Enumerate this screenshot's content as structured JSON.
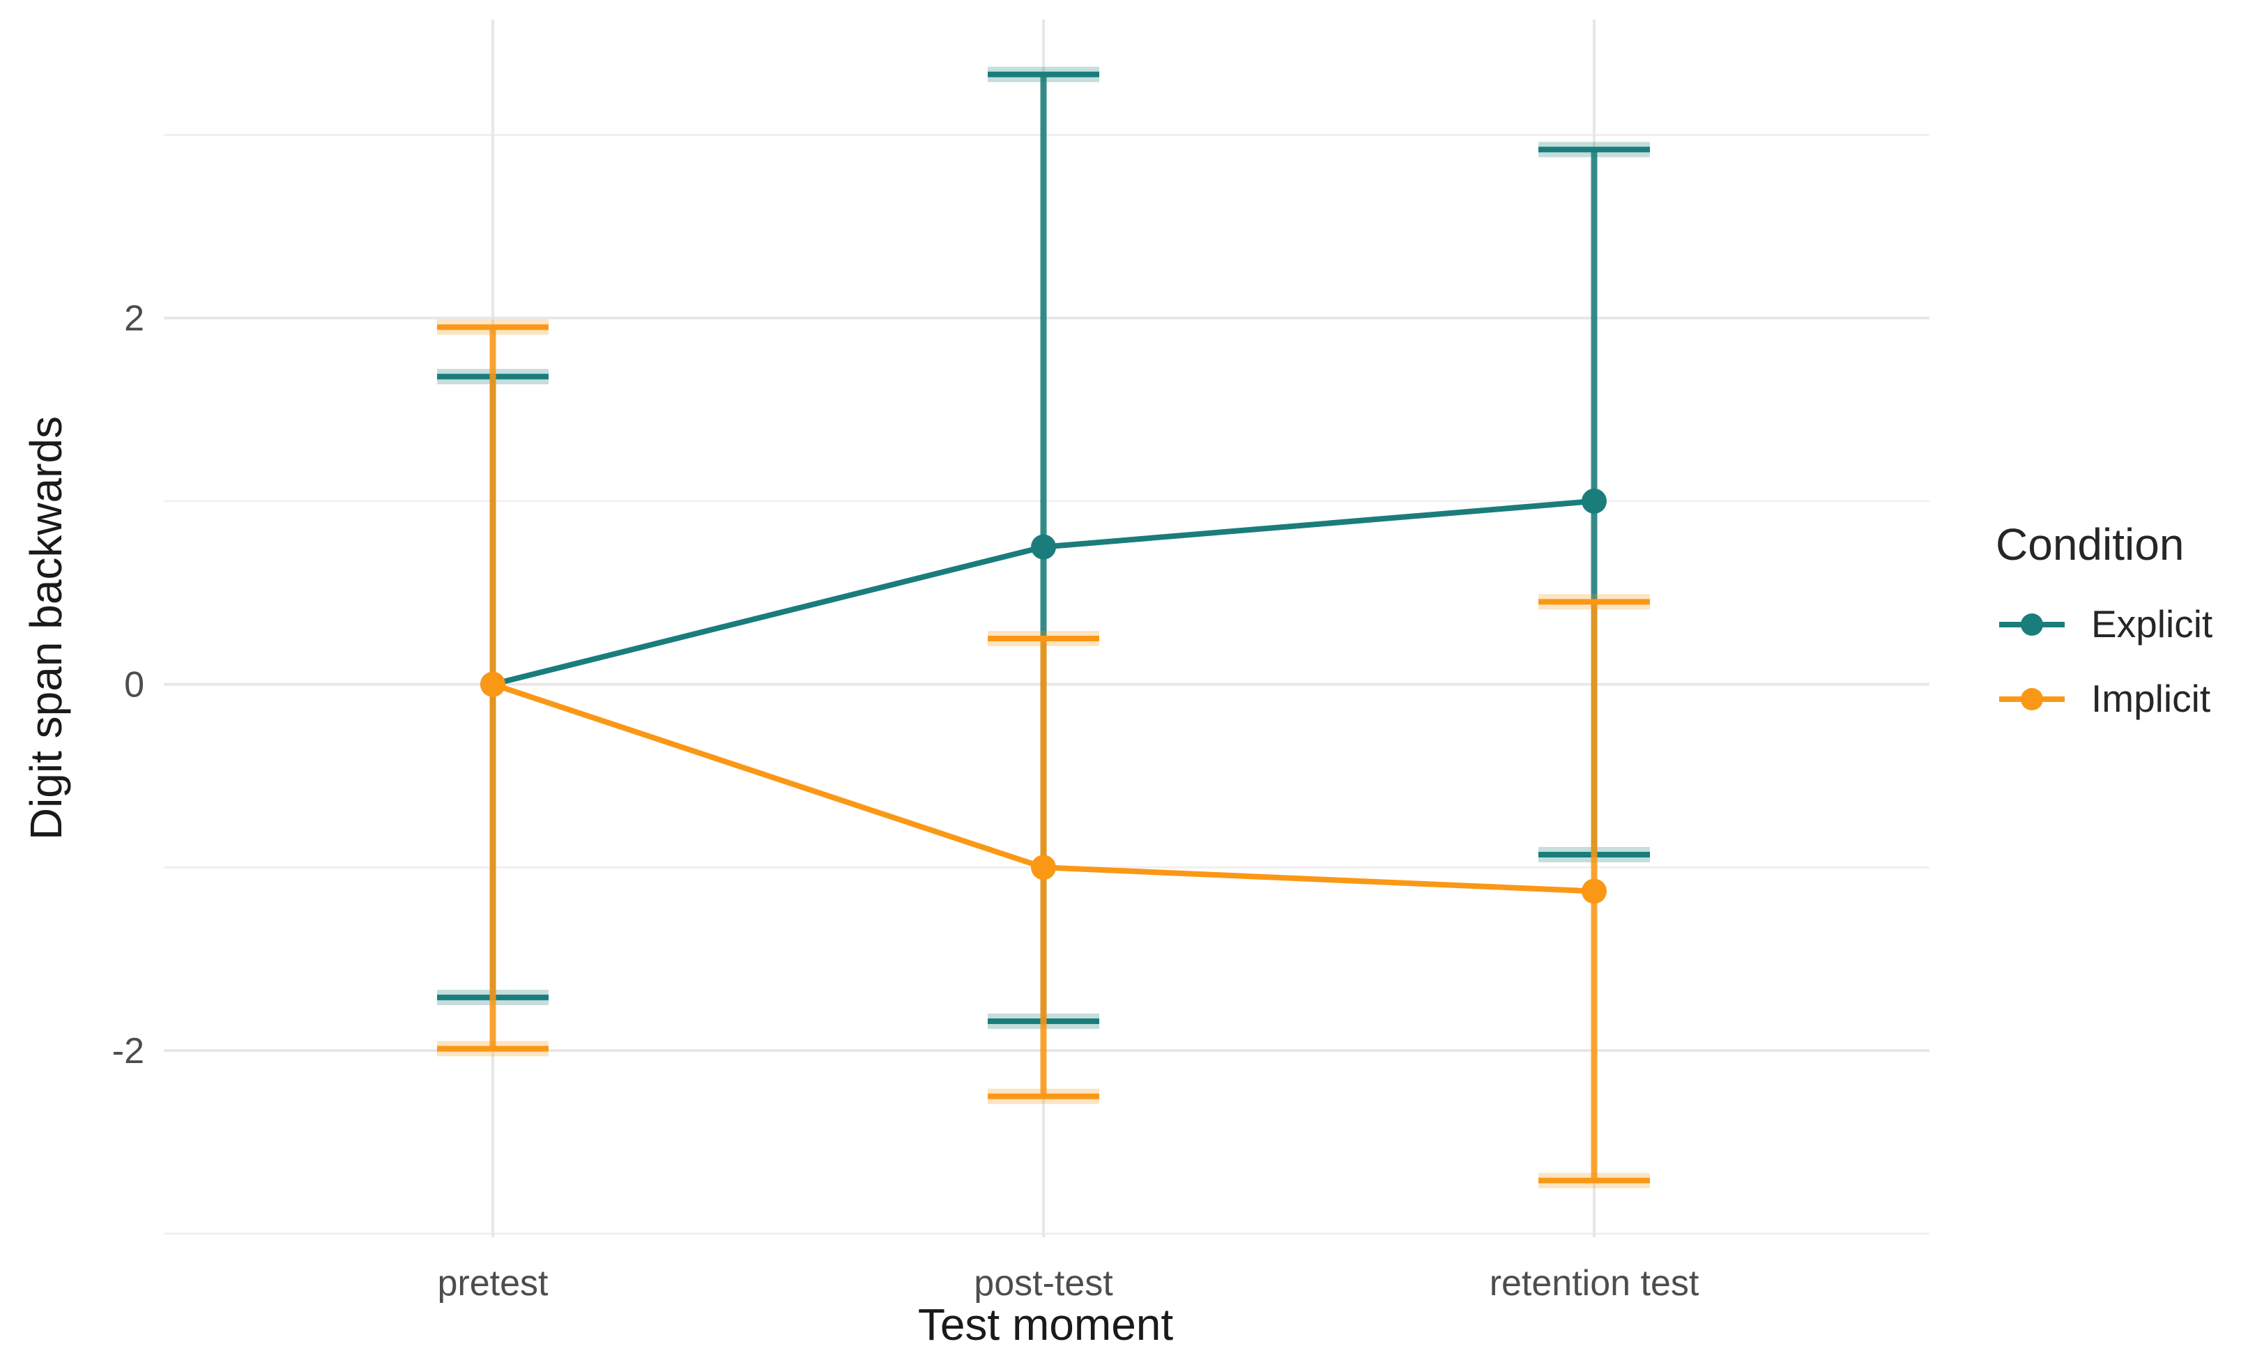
{
  "chart_data": {
    "type": "line",
    "title": "",
    "xlabel": "Test moment",
    "ylabel": "Digit span backwards",
    "legend_title": "Condition",
    "legend_position": "right",
    "grid": true,
    "categories": [
      "pretest",
      "post-test",
      "retention test"
    ],
    "y_ticks": [
      2,
      0,
      -2
    ],
    "y_minor_ticks": [
      3,
      1,
      -1,
      -3
    ],
    "ylim": [
      -3.02,
      3.63
    ],
    "series": [
      {
        "name": "Explicit",
        "color": "#1a7d7b",
        "means": [
          0,
          0.75,
          1.0
        ],
        "ci_low": [
          -1.71,
          -1.84,
          -0.93
        ],
        "ci_high": [
          1.68,
          3.33,
          2.92
        ]
      },
      {
        "name": "Implicit",
        "color": "#fa9816",
        "means": [
          0,
          -1.0,
          -1.13
        ],
        "ci_low": [
          -1.99,
          -2.25,
          -2.71
        ],
        "ci_high": [
          1.95,
          0.25,
          0.45
        ]
      }
    ]
  }
}
